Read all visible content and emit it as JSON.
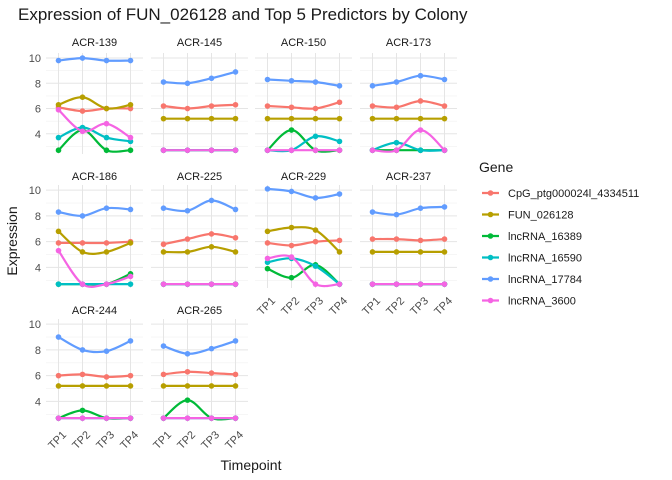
{
  "chart_data": {
    "type": "line",
    "title": "Expression of FUN_026128 and Top 5 Predictors by Colony",
    "xlabel": "Timepoint",
    "ylabel": "Expression",
    "x": [
      "TP1",
      "TP2",
      "TP3",
      "TP4"
    ],
    "y_ticks": [
      4,
      6,
      8,
      10
    ],
    "ylim": [
      2.4,
      10.4
    ],
    "grid": true,
    "smoothed": true,
    "legend": {
      "title": "Gene",
      "placement": "right"
    },
    "series": [
      {
        "name": "CpG_ptg000024l_4334511",
        "color": "#F8766D"
      },
      {
        "name": "FUN_026128",
        "color": "#B79F00"
      },
      {
        "name": "lncRNA_16389",
        "color": "#00BA38"
      },
      {
        "name": "lncRNA_16590",
        "color": "#00BFC4"
      },
      {
        "name": "lncRNA_17784",
        "color": "#619CFF"
      },
      {
        "name": "lncRNA_3600",
        "color": "#F564E3"
      }
    ],
    "facets": [
      {
        "colony": "ACR-139",
        "values": [
          [
            6.1,
            5.8,
            6.0,
            6.0
          ],
          [
            6.3,
            6.9,
            6.0,
            6.3
          ],
          [
            2.7,
            4.3,
            2.7,
            2.7
          ],
          [
            3.7,
            4.5,
            3.7,
            3.4
          ],
          [
            9.8,
            10.0,
            9.8,
            9.8
          ],
          [
            5.9,
            4.2,
            4.8,
            3.7
          ]
        ]
      },
      {
        "colony": "ACR-145",
        "values": [
          [
            6.2,
            6.0,
            6.2,
            6.3
          ],
          [
            5.2,
            5.2,
            5.2,
            5.2
          ],
          [
            2.7,
            2.7,
            2.7,
            2.7
          ],
          [
            2.7,
            2.7,
            2.7,
            2.7
          ],
          [
            8.1,
            8.0,
            8.4,
            8.9
          ],
          [
            2.7,
            2.7,
            2.7,
            2.7
          ]
        ]
      },
      {
        "colony": "ACR-150",
        "values": [
          [
            6.2,
            6.1,
            6.0,
            6.5
          ],
          [
            5.2,
            5.2,
            5.2,
            5.2
          ],
          [
            2.7,
            4.3,
            2.7,
            2.7
          ],
          [
            2.7,
            2.7,
            3.8,
            3.4
          ],
          [
            8.3,
            8.2,
            8.1,
            7.8
          ],
          [
            2.7,
            2.7,
            2.7,
            2.7
          ]
        ]
      },
      {
        "colony": "ACR-173",
        "values": [
          [
            6.2,
            6.1,
            6.6,
            6.2
          ],
          [
            5.2,
            5.2,
            5.2,
            5.2
          ],
          [
            2.7,
            2.7,
            2.7,
            2.7
          ],
          [
            2.7,
            3.3,
            2.7,
            2.7
          ],
          [
            7.8,
            8.1,
            8.6,
            8.3
          ],
          [
            2.7,
            2.7,
            4.3,
            2.7
          ]
        ]
      },
      {
        "colony": "ACR-186",
        "values": [
          [
            5.9,
            5.9,
            5.9,
            6.0
          ],
          [
            6.8,
            5.2,
            5.2,
            5.9
          ],
          [
            2.7,
            2.7,
            2.7,
            3.5
          ],
          [
            2.7,
            2.7,
            2.7,
            2.7
          ],
          [
            8.3,
            8.0,
            8.6,
            8.5
          ],
          [
            5.3,
            2.7,
            2.7,
            3.3
          ]
        ]
      },
      {
        "colony": "ACR-225",
        "values": [
          [
            5.8,
            6.2,
            6.6,
            6.3
          ],
          [
            5.2,
            5.2,
            5.6,
            5.2
          ],
          [
            2.7,
            2.7,
            2.7,
            2.7
          ],
          [
            2.7,
            2.7,
            2.7,
            2.7
          ],
          [
            8.6,
            8.4,
            9.2,
            8.5
          ],
          [
            2.7,
            2.7,
            2.7,
            2.7
          ]
        ]
      },
      {
        "colony": "ACR-229",
        "values": [
          [
            5.9,
            5.7,
            6.0,
            6.1
          ],
          [
            6.8,
            7.1,
            6.9,
            5.2
          ],
          [
            3.9,
            3.2,
            4.2,
            2.7
          ],
          [
            4.4,
            4.7,
            4.1,
            2.7
          ],
          [
            10.1,
            9.9,
            9.4,
            9.7
          ],
          [
            4.7,
            4.8,
            2.7,
            2.7
          ]
        ]
      },
      {
        "colony": "ACR-237",
        "values": [
          [
            6.2,
            6.2,
            6.1,
            6.2
          ],
          [
            5.2,
            5.2,
            5.2,
            5.2
          ],
          [
            2.7,
            2.7,
            2.7,
            2.7
          ],
          [
            2.7,
            2.7,
            2.7,
            2.7
          ],
          [
            8.3,
            8.1,
            8.6,
            8.7
          ],
          [
            2.7,
            2.7,
            2.7,
            2.7
          ]
        ]
      },
      {
        "colony": "ACR-244",
        "values": [
          [
            6.0,
            6.1,
            5.9,
            6.0
          ],
          [
            5.2,
            5.2,
            5.2,
            5.2
          ],
          [
            2.7,
            3.3,
            2.7,
            2.7
          ],
          [
            2.7,
            2.7,
            2.7,
            2.7
          ],
          [
            9.0,
            8.0,
            7.9,
            8.7
          ],
          [
            2.7,
            2.7,
            2.7,
            2.7
          ]
        ]
      },
      {
        "colony": "ACR-265",
        "values": [
          [
            6.1,
            6.3,
            6.2,
            6.1
          ],
          [
            5.2,
            5.2,
            5.2,
            5.2
          ],
          [
            2.7,
            4.1,
            2.7,
            2.7
          ],
          [
            2.7,
            2.7,
            2.7,
            2.7
          ],
          [
            8.3,
            7.7,
            8.1,
            8.7
          ],
          [
            2.7,
            2.7,
            2.7,
            2.7
          ]
        ]
      }
    ]
  }
}
